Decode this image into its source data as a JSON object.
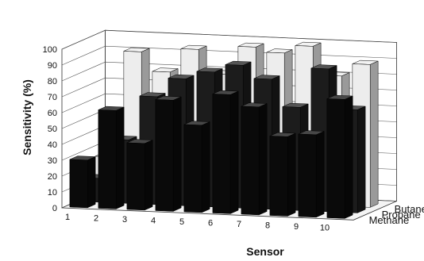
{
  "chart_data": {
    "type": "bar",
    "subtype": "3d-grouped-depth",
    "xlabel": "Sensor",
    "ylabel": "Sensitivity (%)",
    "ylim": [
      0,
      100
    ],
    "yticks": [
      "0",
      "10",
      "20",
      "30",
      "40",
      "50",
      "60",
      "70",
      "80",
      "90",
      "100"
    ],
    "categories": [
      "1",
      "2",
      "3",
      "4",
      "5",
      "6",
      "7",
      "8",
      "9",
      "10"
    ],
    "grid": true,
    "series": [
      {
        "name": "Methane",
        "color": "#0a0a0a",
        "values": [
          30,
          62,
          42,
          70,
          55,
          75,
          68,
          50,
          52,
          75
        ]
      },
      {
        "name": "Propane",
        "color": "#1c1c1c",
        "values": [
          15,
          40,
          68,
          80,
          85,
          90,
          82,
          65,
          90,
          65
        ]
      },
      {
        "name": "Butane",
        "color": "#ededed",
        "values": [
          25,
          92,
          80,
          95,
          80,
          98,
          95,
          100,
          82,
          90
        ]
      }
    ]
  }
}
